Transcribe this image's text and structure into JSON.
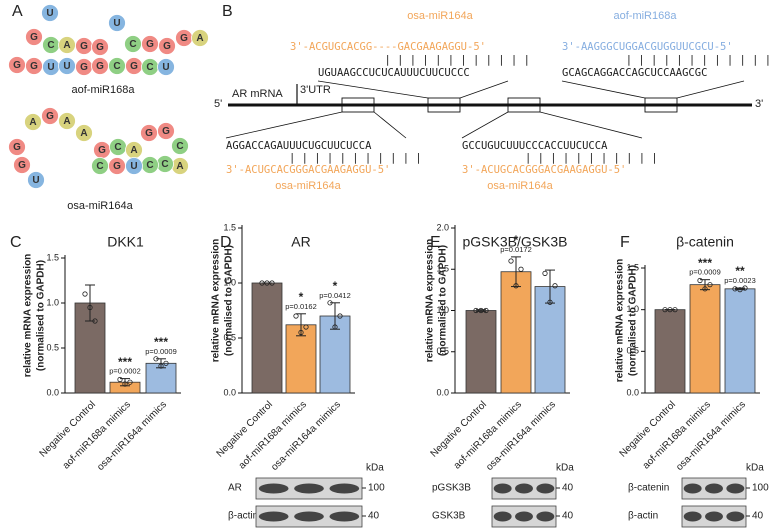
{
  "panel_a": {
    "letter": "A",
    "colors": {
      "G": "#f08a84",
      "C": "#8fcf84",
      "A": "#d8d37e",
      "U": "#86b5e0"
    },
    "structures": [
      {
        "name": "aof-miR168a",
        "bases": [
          "U",
          "G",
          "C",
          "A",
          "G",
          "G",
          "U",
          "C",
          "G",
          "G",
          "G",
          "A",
          "G",
          "G",
          "U",
          "U",
          "G",
          "G",
          "C",
          "G",
          "C",
          "U"
        ]
      },
      {
        "name": "osa-miR164a",
        "bases": [
          "A",
          "G",
          "A",
          "A",
          "G",
          "C",
          "A",
          "G",
          "G",
          "C",
          "A",
          "C",
          "C",
          "U",
          "G",
          "C",
          "G",
          "G",
          "U"
        ]
      }
    ]
  },
  "panel_b": {
    "letter": "B",
    "mrna": "AR mRNA",
    "utr": "3'UTR",
    "five": "5'",
    "three": "3'",
    "sites": [
      {
        "name": "osa-miR164a",
        "mirna": "3'-ACGUGCACGG----GACGAAGAGGU-5'",
        "pairs": "| | | | | | | | | | | |",
        "target": "UGUAAGCCUCUCAUUUCUUCUCCC"
      },
      {
        "name": "aof-miR168a",
        "mirna": "3'-AAGGGCUGGACGUGGUUCGCU-5'",
        "pairs": "| | | | | | | | | | | | | | |",
        "target": "GCAGCAGGACCAGCUCCAAGCGC"
      },
      {
        "name": "osa-miR164a",
        "mirna": "3'-ACUGCACGGGACGAAGAGGU-5'",
        "pairs": "| | | | | | | | | | |",
        "target": "AGGACCAGAUUUCUGCUUCUCCA"
      },
      {
        "name": "osa-miR164a",
        "mirna": "3'-ACUGCACGGGACGAAGAGGU-5'",
        "pairs": "| | | | | | | | | | |",
        "target": "GCCUGUCUUUCCCACCUUCUCCA"
      }
    ]
  },
  "chart_data": [
    {
      "type": "bar",
      "panel": "C",
      "title": "DKK1",
      "y_label": [
        "relative mRNA expression",
        "(normalised to GAPDH)"
      ],
      "categories": [
        "Negative Control",
        "aof-miR168a mimics",
        "osa-miR164a mimics"
      ],
      "colors": [
        "#7b6a64",
        "#f2a65a",
        "#9dbbe0"
      ],
      "values": [
        1.0,
        0.12,
        0.33
      ],
      "errors": [
        0.2,
        0.04,
        0.05
      ],
      "points": [
        [
          1.1,
          0.95,
          0.8
        ],
        [
          0.15,
          0.1,
          0.12
        ],
        [
          0.38,
          0.3,
          0.33
        ]
      ],
      "stars": [
        null,
        "***",
        "***"
      ],
      "pvalues": [
        null,
        "p=0.0002",
        "p=0.0009"
      ],
      "ylim": [
        0,
        1.5
      ],
      "yticks": [
        {
          "value": 0,
          "label": "0.0"
        },
        {
          "value": 0.5,
          "label": "0.5"
        },
        {
          "value": 1,
          "label": "1.0"
        },
        {
          "value": 1.5,
          "label": "1.5"
        }
      ]
    },
    {
      "type": "bar",
      "panel": "D",
      "title": "AR",
      "y_label": [
        "relative mRNA expression",
        "(normalised to GAPDH)"
      ],
      "categories": [
        "Negative Control",
        "aof-miR168a mimics",
        "osa-miR164a mimics"
      ],
      "colors": [
        "#7b6a64",
        "#f2a65a",
        "#9dbbe0"
      ],
      "values": [
        1.0,
        0.62,
        0.7
      ],
      "errors": [
        0.0,
        0.1,
        0.12
      ],
      "points": [
        [
          1.0,
          1.0,
          1.0
        ],
        [
          0.7,
          0.55,
          0.6
        ],
        [
          0.82,
          0.6,
          0.7
        ]
      ],
      "stars": [
        null,
        "*",
        "*"
      ],
      "pvalues": [
        null,
        "p=0.0162",
        "p=0.0412"
      ],
      "ylim": [
        0,
        1.5
      ],
      "yticks": [
        {
          "value": 0,
          "label": "0.0"
        },
        {
          "value": 0.5,
          "label": "0.5"
        },
        {
          "value": 1,
          "label": "1.0"
        },
        {
          "value": 1.5,
          "label": "1.5"
        }
      ]
    },
    {
      "type": "bar",
      "panel": "E",
      "title": "pGSK3B/GSK3B",
      "y_label": [
        "relative mRNA expression",
        "(normalised to GAPDH)"
      ],
      "categories": [
        "Negative Control",
        "aof-miR168a mimics",
        "osa-miR164a mimics"
      ],
      "colors": [
        "#7b6a64",
        "#f2a65a",
        "#9dbbe0"
      ],
      "values": [
        1.0,
        1.47,
        1.29
      ],
      "errors": [
        0.01,
        0.18,
        0.2
      ],
      "points": [
        [
          1.0,
          1.0,
          1.0
        ],
        [
          1.6,
          1.3,
          1.5
        ],
        [
          1.45,
          1.1,
          1.3
        ]
      ],
      "stars": [
        null,
        "*",
        null
      ],
      "pvalues": [
        null,
        "p=0.0172",
        null
      ],
      "ylim": [
        0,
        2
      ],
      "yticks": [
        {
          "value": 0,
          "label": "0.0"
        },
        {
          "value": 0.5,
          "label": "0.5"
        },
        {
          "value": 1,
          "label": "1.0"
        },
        {
          "value": 1.5,
          "label": "1.5"
        },
        {
          "value": 2,
          "label": "2.0"
        }
      ]
    },
    {
      "type": "bar",
      "panel": "F",
      "title": "β-catenin",
      "y_label": [
        "relative mRNA expression",
        "(normalised to GAPDH)"
      ],
      "categories": [
        "Negative Control",
        "aof-miR168a mimics",
        "osa-miR164a mimics"
      ],
      "colors": [
        "#7b6a64",
        "#f2a65a",
        "#9dbbe0"
      ],
      "values": [
        1.0,
        1.3,
        1.25
      ],
      "errors": [
        0.0,
        0.06,
        0.01
      ],
      "points": [
        [
          1.0,
          1.0,
          1.0
        ],
        [
          1.35,
          1.25,
          1.3
        ],
        [
          1.25,
          1.24,
          1.26
        ]
      ],
      "stars": [
        null,
        "***",
        "**"
      ],
      "pvalues": [
        null,
        "p=0.0009",
        "p=0.0023"
      ],
      "ylim": [
        0,
        1.5
      ],
      "yticks": [
        {
          "value": 0,
          "label": "0.0"
        },
        {
          "value": 0.5,
          "label": "0.5"
        },
        {
          "value": 1,
          "label": "1.0"
        },
        {
          "value": 1.5,
          "label": "1.5"
        }
      ]
    }
  ],
  "blots": [
    {
      "unit": "kDa",
      "rows": [
        {
          "label": "AR",
          "marker": "100"
        },
        {
          "label": "β-actin",
          "marker": "40"
        }
      ]
    },
    {
      "unit": "kDa",
      "rows": [
        {
          "label": "pGSK3B",
          "marker": "40"
        },
        {
          "label": "GSK3B",
          "marker": "40"
        }
      ]
    },
    {
      "unit": "kDa",
      "rows": [
        {
          "label": "β-catenin",
          "marker": "100"
        },
        {
          "label": "β-actin",
          "marker": "40"
        }
      ]
    }
  ]
}
